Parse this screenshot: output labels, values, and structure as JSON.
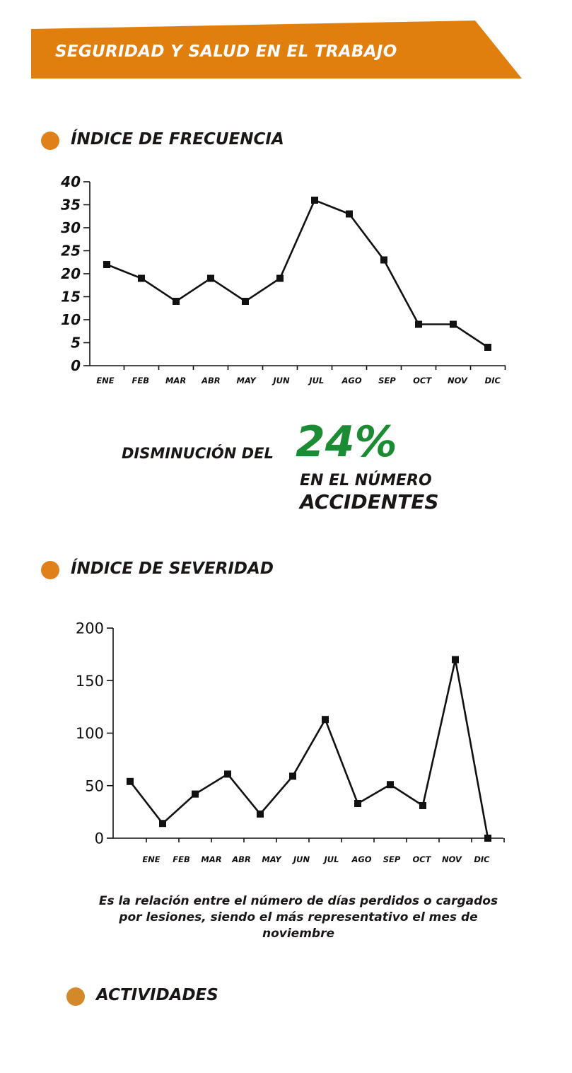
{
  "header": {
    "title": "SEGURIDAD Y SALUD EN EL TRABAJO"
  },
  "sections": {
    "frecuencia": {
      "title": "ÍNDICE DE FRECUENCIA"
    },
    "severidad": {
      "title": "ÍNDICE DE SEVERIDAD"
    },
    "actividades": {
      "title": "ACTIVIDADES"
    }
  },
  "highlight": {
    "prefix": "DISMINUCIÓN DEL",
    "value": "24%",
    "line1": "EN EL NÚMERO",
    "line2": "ACCIDENTES"
  },
  "note": "Es la relación entre el número de días perdidos o cargados por lesiones, siendo el más representativo el mes de noviembre",
  "colors": {
    "banner": "#e07f0e",
    "bullet": "#e0801a",
    "bullet_last": "#d3892a",
    "accent_green": "#1b8c34",
    "line": "#111111"
  },
  "chart_data": [
    {
      "type": "line",
      "title": "",
      "categories": [
        "ENE",
        "FEB",
        "MAR",
        "ABR",
        "MAY",
        "JUN",
        "JUL",
        "AGO",
        "SEP",
        "OCT",
        "NOV",
        "DIC"
      ],
      "series": [
        {
          "values": [
            22,
            19,
            14,
            19,
            14,
            19,
            36,
            33,
            23,
            9,
            9,
            4
          ]
        }
      ],
      "yticks": [
        "0",
        "5",
        "10",
        "15",
        "20",
        "25",
        "30",
        "35",
        "40"
      ],
      "ylim": [
        0,
        40
      ],
      "grid": false,
      "legend": "none"
    },
    {
      "type": "line",
      "title": "",
      "categories": [
        "ENE",
        "FEB",
        "MAR",
        "ABR",
        "MAY",
        "JUN",
        "JUL",
        "AGO",
        "SEP",
        "OCT",
        "NOV",
        "DIC"
      ],
      "series": [
        {
          "values": [
            54,
            14,
            42,
            61,
            23,
            59,
            113,
            33,
            51,
            31,
            170,
            0
          ]
        }
      ],
      "yticks": [
        "0",
        "50",
        "100",
        "150",
        "200"
      ],
      "ylim": [
        0,
        200
      ],
      "grid": false,
      "legend": "none"
    }
  ]
}
